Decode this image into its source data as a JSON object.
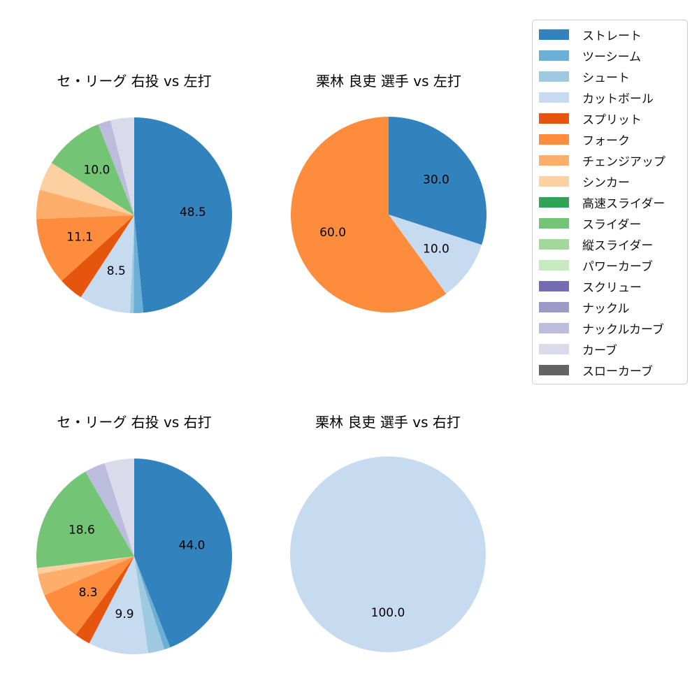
{
  "figure": {
    "background_color": "#ffffff",
    "text_color": "#000000",
    "legend_border_color": "#cccccc"
  },
  "legend": {
    "position": "right",
    "items": [
      {
        "label": "ストレート",
        "color": "#3182bd"
      },
      {
        "label": "ツーシーム",
        "color": "#6baed6"
      },
      {
        "label": "シュート",
        "color": "#9ecae1"
      },
      {
        "label": "カットボール",
        "color": "#c6dbef"
      },
      {
        "label": "スプリット",
        "color": "#e6550d"
      },
      {
        "label": "フォーク",
        "color": "#fd8d3c"
      },
      {
        "label": "チェンジアップ",
        "color": "#fdae6b"
      },
      {
        "label": "シンカー",
        "color": "#fdd0a2"
      },
      {
        "label": "高速スライダー",
        "color": "#31a354"
      },
      {
        "label": "スライダー",
        "color": "#74c476"
      },
      {
        "label": "縦スライダー",
        "color": "#a1d99b"
      },
      {
        "label": "パワーカーブ",
        "color": "#c7e9c0"
      },
      {
        "label": "スクリュー",
        "color": "#756bb1"
      },
      {
        "label": "ナックル",
        "color": "#9e9ac8"
      },
      {
        "label": "ナックルカーブ",
        "color": "#bcbddc"
      },
      {
        "label": "カーブ",
        "color": "#dadaeb"
      },
      {
        "label": "スローカーブ",
        "color": "#636363"
      }
    ]
  },
  "chart_data": [
    {
      "type": "pie",
      "title": "セ・リーグ 右投 vs 左打",
      "start_angle": "top",
      "direction": "clockwise",
      "label_threshold_pct": 5,
      "pct_distance": 0.6,
      "slices": [
        {
          "label": "ストレート",
          "value": 48.5
        },
        {
          "label": "ツーシーム",
          "value": 1.6
        },
        {
          "label": "シュート",
          "value": 0.6
        },
        {
          "label": "カットボール",
          "value": 8.5
        },
        {
          "label": "スプリット",
          "value": 4.1
        },
        {
          "label": "フォーク",
          "value": 11.1
        },
        {
          "label": "チェンジアップ",
          "value": 4.8
        },
        {
          "label": "シンカー",
          "value": 4.8
        },
        {
          "label": "スライダー",
          "value": 10.0
        },
        {
          "label": "ナックルカーブ",
          "value": 2.1
        },
        {
          "label": "カーブ",
          "value": 3.9
        }
      ]
    },
    {
      "type": "pie",
      "title": "栗林 良吏 選手 vs 左打",
      "start_angle": "top",
      "direction": "clockwise",
      "label_threshold_pct": 5,
      "pct_distance": 0.6,
      "slices": [
        {
          "label": "ストレート",
          "value": 30.0
        },
        {
          "label": "カットボール",
          "value": 10.0
        },
        {
          "label": "フォーク",
          "value": 60.0
        }
      ]
    },
    {
      "type": "pie",
      "title": "セ・リーグ 右投 vs 右打",
      "start_angle": "top",
      "direction": "clockwise",
      "label_threshold_pct": 5,
      "pct_distance": 0.6,
      "slices": [
        {
          "label": "ストレート",
          "value": 44.0
        },
        {
          "label": "ツーシーム",
          "value": 1.0
        },
        {
          "label": "シュート",
          "value": 2.7
        },
        {
          "label": "カットボール",
          "value": 9.9
        },
        {
          "label": "スプリット",
          "value": 2.6
        },
        {
          "label": "フォーク",
          "value": 8.3
        },
        {
          "label": "チェンジアップ",
          "value": 3.6
        },
        {
          "label": "シンカー",
          "value": 1.0
        },
        {
          "label": "スライダー",
          "value": 18.6
        },
        {
          "label": "ナックルカーブ",
          "value": 3.4
        },
        {
          "label": "カーブ",
          "value": 4.9
        }
      ]
    },
    {
      "type": "pie",
      "title": "栗林 良吏 選手 vs 右打",
      "start_angle": "top",
      "direction": "clockwise",
      "label_threshold_pct": 5,
      "pct_distance": 0.6,
      "slices": [
        {
          "label": "カットボール",
          "value": 100.0
        }
      ]
    }
  ]
}
